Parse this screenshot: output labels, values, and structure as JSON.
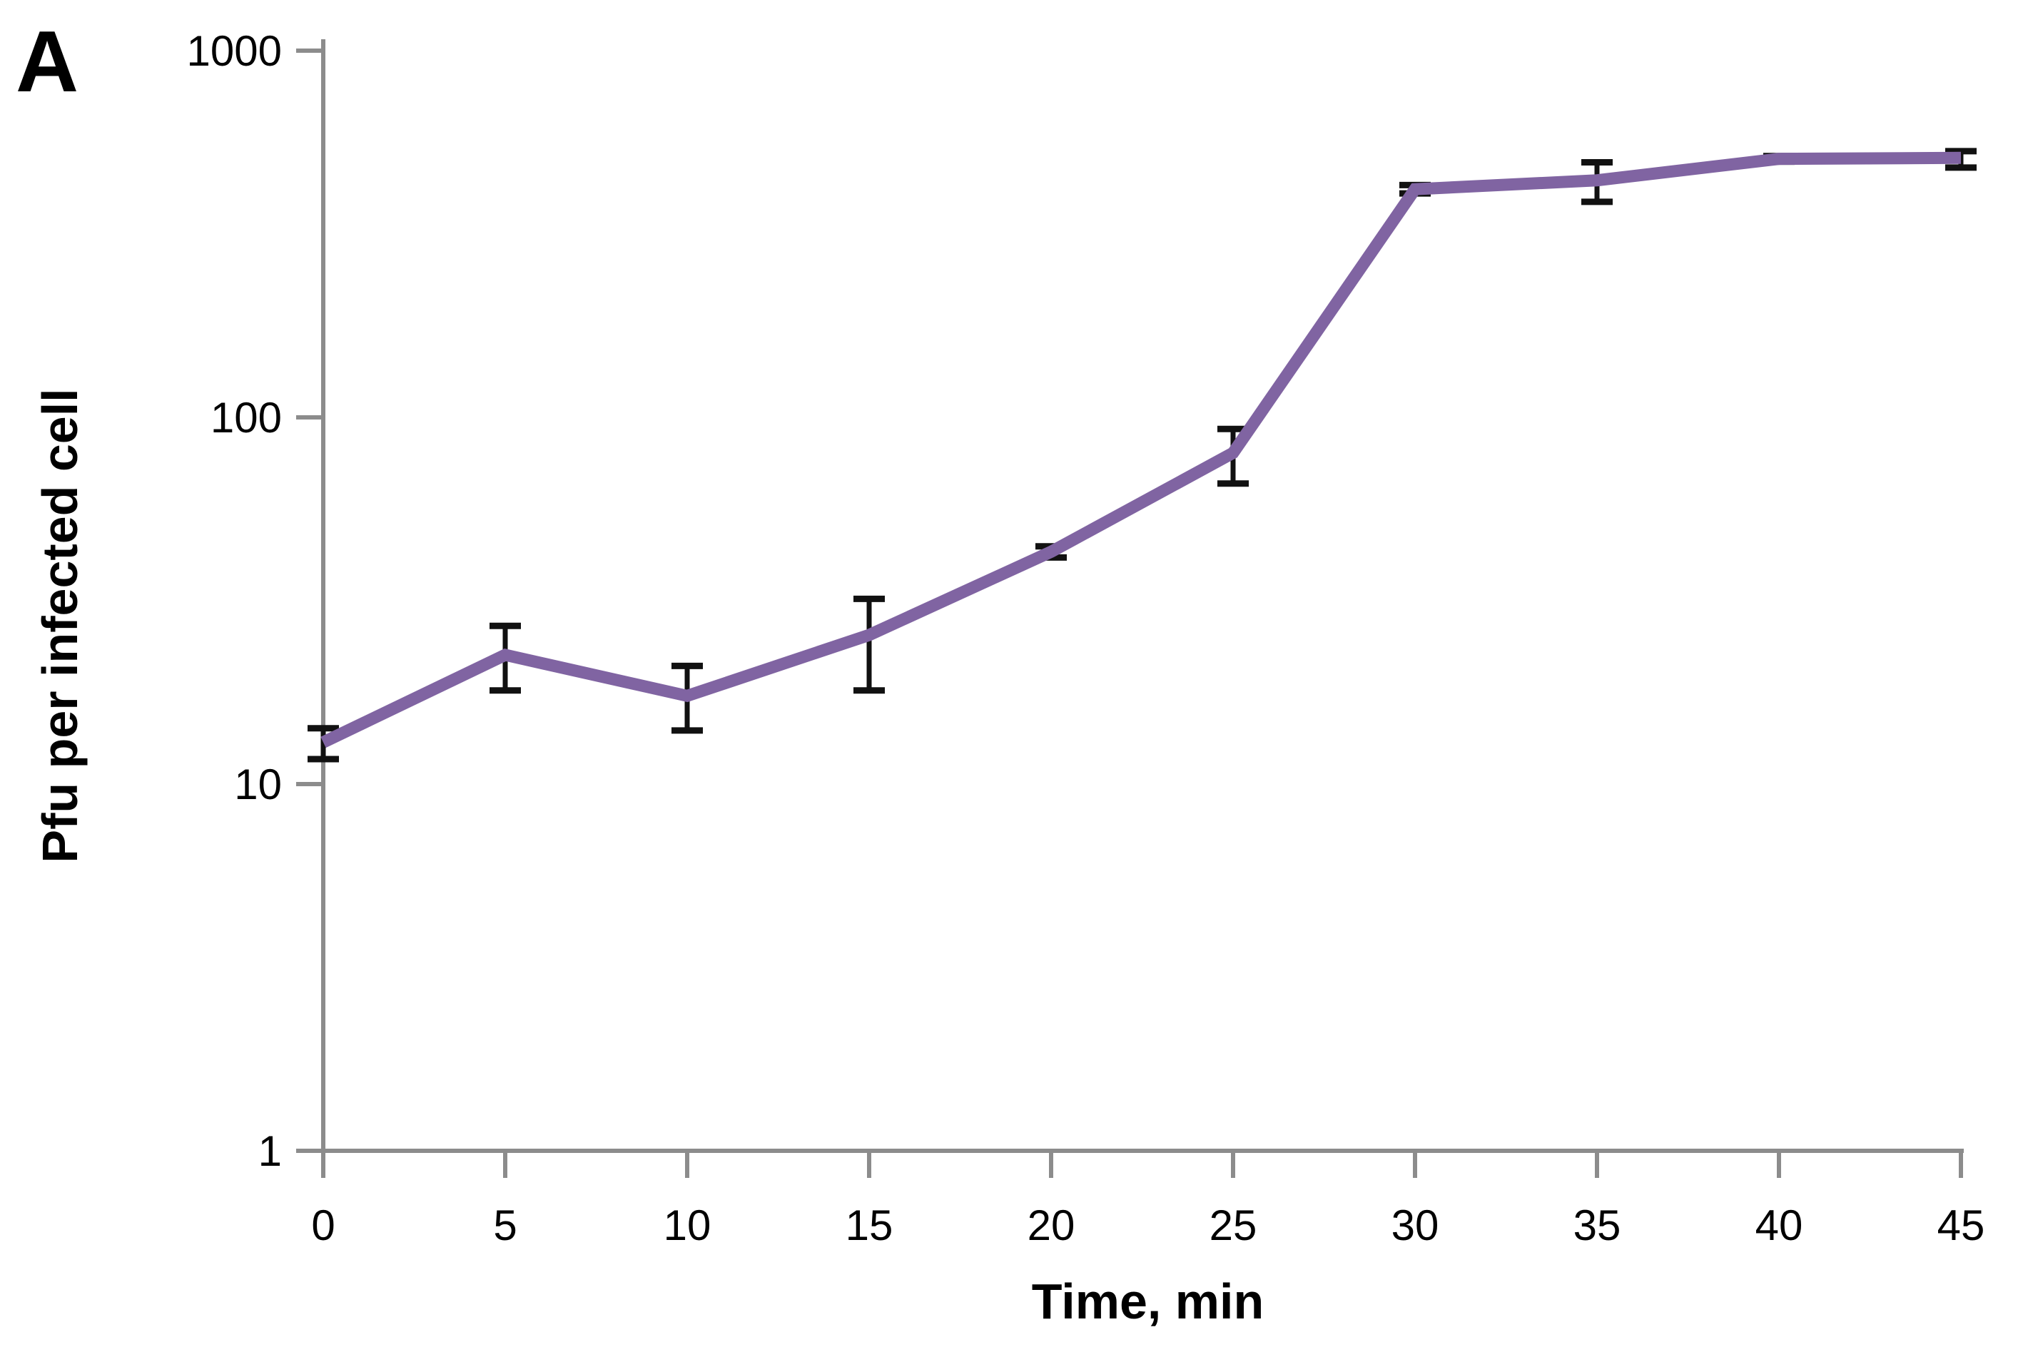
{
  "panel_label": "A",
  "colors": {
    "line": "#8064A2",
    "axis": "#8C8C8C",
    "error_bar": "#111111",
    "text": "#000000",
    "background": "#FFFFFF"
  },
  "chart_data": {
    "type": "line",
    "title": "",
    "xlabel": "Time, min",
    "ylabel": "Pfu per infected cell",
    "x": [
      0,
      5,
      10,
      15,
      20,
      25,
      30,
      35,
      40,
      45
    ],
    "series": [
      {
        "name": "Pfu per infected cell",
        "values": [
          13,
          22.5,
          17.4,
          25.5,
          43,
          80,
          419,
          443,
          507,
          510
        ],
        "error_low": [
          11.7,
          18,
          14,
          18,
          41.5,
          66,
          408,
          387,
          498,
          480
        ],
        "error_high": [
          14.2,
          27,
          21,
          32,
          44.5,
          93,
          430,
          496,
          516,
          532
        ]
      }
    ],
    "x_ticks": [
      0,
      5,
      10,
      15,
      20,
      25,
      30,
      35,
      40,
      45
    ],
    "y_ticks": [
      1,
      10,
      100,
      1000
    ],
    "y_scale": "log",
    "xlim": [
      0,
      45
    ],
    "ylim": [
      1,
      1000
    ],
    "grid": false,
    "legend": "none"
  }
}
